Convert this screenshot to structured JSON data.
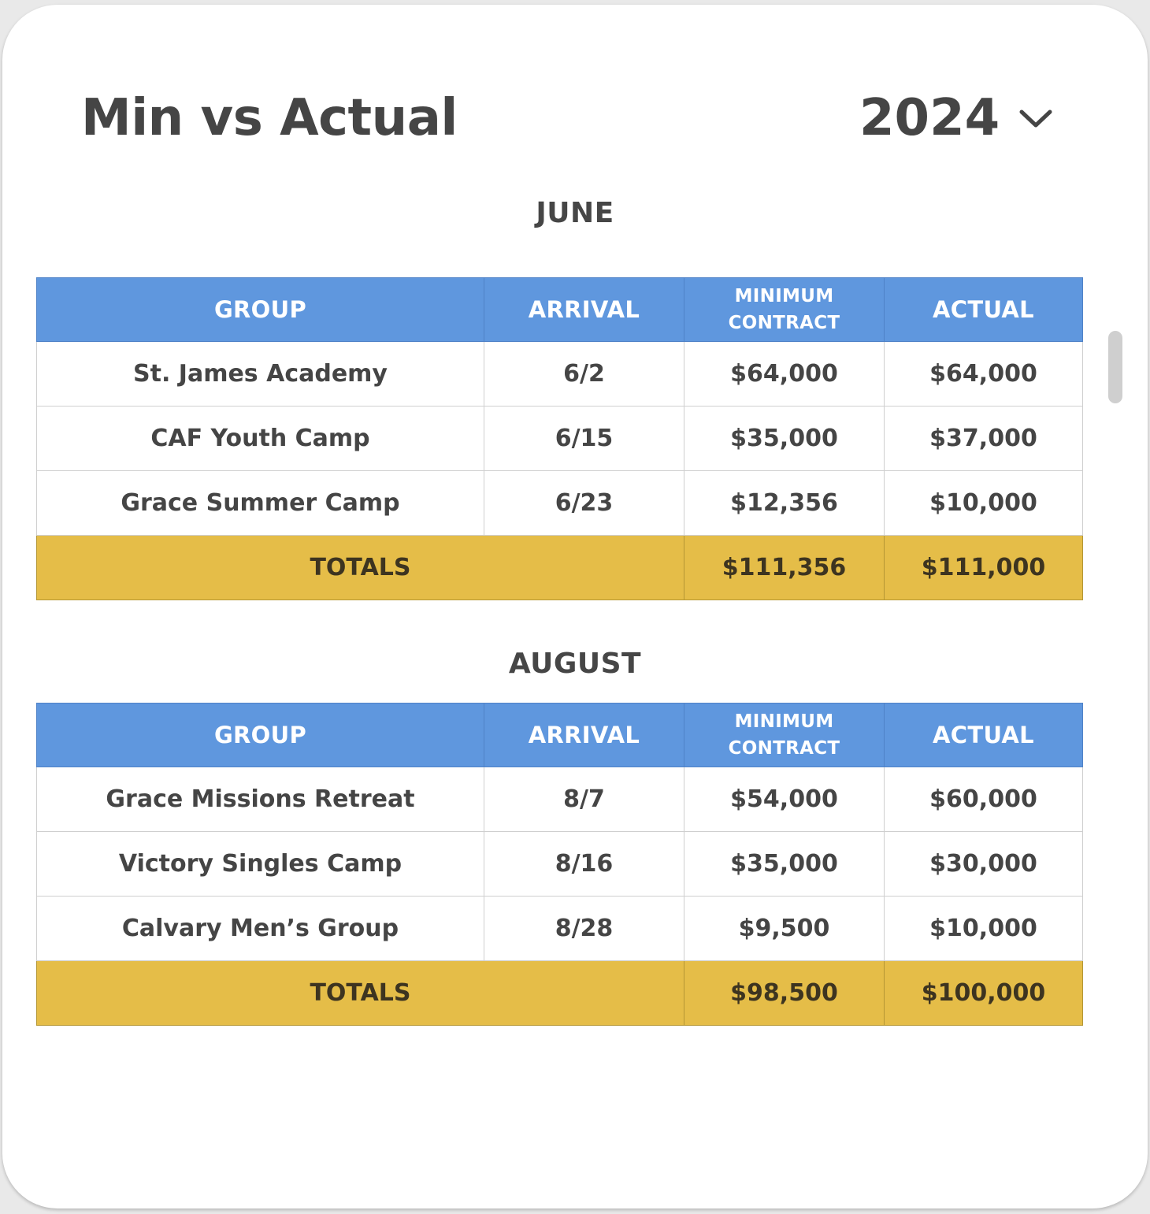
{
  "title": "Min vs Actual",
  "year_select": {
    "value": "2024",
    "icon": "chevron-down-icon"
  },
  "columns": {
    "group": "GROUP",
    "arrival": "ARRIVAL",
    "minimum_line1": "MINIMUM",
    "minimum_line2": "CONTRACT",
    "actual": "ACTUAL"
  },
  "months": [
    {
      "name": "JUNE",
      "rows": [
        {
          "group": "St. James Academy",
          "arrival": "6/2",
          "minimum": "$64,000",
          "actual": "$64,000"
        },
        {
          "group": "CAF Youth Camp",
          "arrival": "6/15",
          "minimum": "$35,000",
          "actual": "$37,000"
        },
        {
          "group": "Grace Summer Camp",
          "arrival": "6/23",
          "minimum": "$12,356",
          "actual": "$10,000"
        }
      ],
      "totals": {
        "label": "TOTALS",
        "minimum": "$111,356",
        "actual": "$111,000"
      }
    },
    {
      "name": "AUGUST",
      "rows": [
        {
          "group": "Grace Missions Retreat",
          "arrival": "8/7",
          "minimum": "$54,000",
          "actual": "$60,000"
        },
        {
          "group": "Victory Singles Camp",
          "arrival": "8/16",
          "minimum": "$35,000",
          "actual": "$30,000"
        },
        {
          "group": "Calvary Men’s Group",
          "arrival": "8/28",
          "minimum": "$9,500",
          "actual": "$10,000"
        }
      ],
      "totals": {
        "label": "TOTALS",
        "minimum": "$98,500",
        "actual": "$100,000"
      }
    }
  ],
  "colors": {
    "header_bg": "#5f97de",
    "totals_bg": "#e5bd48",
    "text": "#454545"
  }
}
